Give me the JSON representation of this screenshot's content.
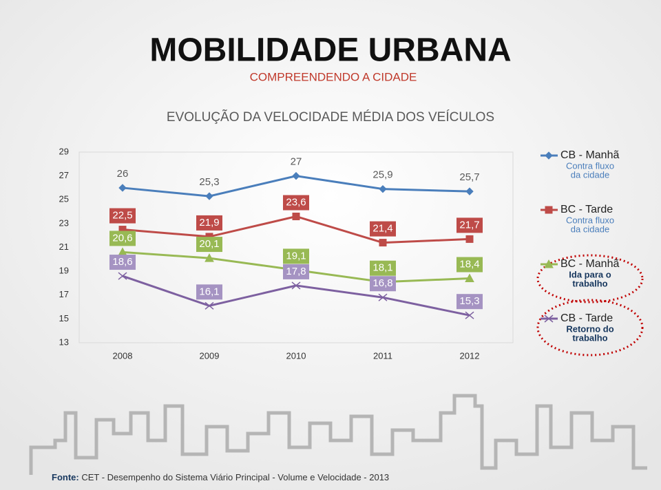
{
  "chart_data": {
    "type": "line",
    "heading": "MOBILIDADE URBANA",
    "subheading": "COMPREENDENDO A CIDADE",
    "title": "EVOLUÇÃO DA VELOCIDADE MÉDIA DOS VEÍCULOS",
    "categories": [
      "2008",
      "2009",
      "2010",
      "2011",
      "2012"
    ],
    "series": [
      {
        "name": "CB - Manhã",
        "note": [
          "Contra fluxo",
          "da cidade"
        ],
        "color": "#4a7ebb",
        "marker": "diamond",
        "values": [
          26,
          25.3,
          27,
          25.9,
          25.7
        ],
        "value_labels": [
          "26",
          "25,3",
          "27",
          "25,9",
          "25,7"
        ]
      },
      {
        "name": "BC - Tarde",
        "note": [
          "Contra fluxo",
          "da cidade"
        ],
        "color": "#be4b48",
        "marker": "square",
        "values": [
          22.5,
          21.9,
          23.6,
          21.4,
          21.7
        ],
        "value_labels": [
          "22,5",
          "21,9",
          "23,6",
          "21,4",
          "21,7"
        ]
      },
      {
        "name": "BC - Manhã",
        "note": [
          "Ida para o",
          "trabalho"
        ],
        "color": "#98b954",
        "marker": "triangle",
        "values": [
          20.6,
          20.1,
          19.1,
          18.1,
          18.4
        ],
        "value_labels": [
          "20,6",
          "20,1",
          "19,1",
          "18,1",
          "18,4"
        ]
      },
      {
        "name": "CB - Tarde",
        "note": [
          "Retorno do",
          "trabalho"
        ],
        "color": "#7d60a0",
        "marker": "x",
        "values": [
          18.6,
          16.1,
          17.8,
          16.8,
          15.3
        ],
        "value_labels": [
          "18,6",
          "16,1",
          "17,8",
          "16,8",
          "15,3"
        ]
      }
    ],
    "ylim": [
      13,
      29
    ],
    "yticks": [
      13,
      15,
      17,
      19,
      21,
      23,
      25,
      27,
      29
    ],
    "grid": false,
    "legend": "right",
    "source": {
      "label": "Fonte:",
      "text": "CET - Desempenho do Sistema Viário Principal - Volume e Velocidade - 2013"
    }
  }
}
